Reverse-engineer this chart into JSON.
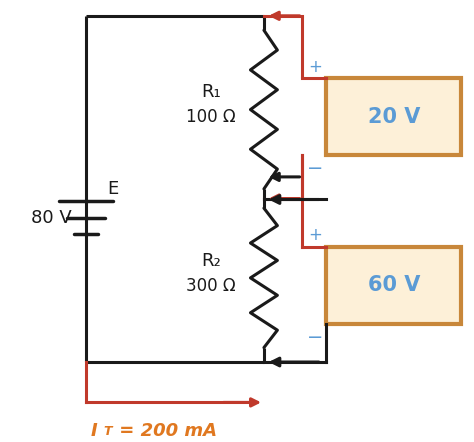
{
  "bg_color": "#ffffff",
  "wire_color": "#1a1a1a",
  "red_color": "#c0392b",
  "blue_color": "#5b9bd5",
  "orange_color": "#e07820",
  "resistor_color": "#1a1a1a",
  "box_edge_color": "#c8873a",
  "box_face_color": "#fdf0d8",
  "battery_label": "E",
  "battery_value": "80 V",
  "r1_label": "R₁",
  "r1_value": "100 Ω",
  "r2_label": "R₂",
  "r2_value": "300 Ω",
  "v1_label": "20 V",
  "v2_label": "60 V",
  "current_label": "I",
  "current_sub": "T",
  "current_rest": " = 200 mA",
  "plus_label": "+",
  "minus_label": "−",
  "figsize": [
    4.74,
    4.42
  ],
  "dpi": 100
}
